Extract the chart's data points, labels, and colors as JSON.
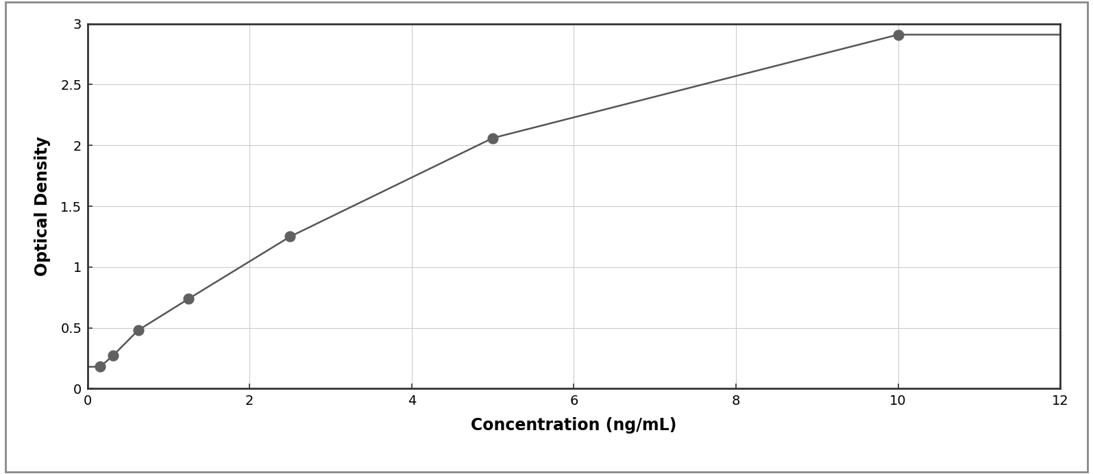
{
  "x_data": [
    0.156,
    0.313,
    0.625,
    1.25,
    2.5,
    5.0,
    10.0
  ],
  "y_data": [
    0.18,
    0.27,
    0.48,
    0.74,
    1.25,
    2.06,
    2.91
  ],
  "xlabel": "Concentration (ng/mL)",
  "ylabel": "Optical Density",
  "xlim": [
    0,
    12
  ],
  "ylim": [
    0,
    3
  ],
  "xticks": [
    0,
    2,
    4,
    6,
    8,
    10,
    12
  ],
  "yticks": [
    0,
    0.5,
    1.0,
    1.5,
    2.0,
    2.5,
    3.0
  ],
  "marker_color": "#606060",
  "line_color": "#555555",
  "marker_size": 9,
  "line_width": 1.8,
  "background_color": "#ffffff",
  "plot_bg_color": "#ffffff",
  "grid_color": "#cccccc",
  "border_color": "#333333",
  "outer_border_color": "#888888",
  "xlabel_fontsize": 17,
  "ylabel_fontsize": 17,
  "tick_fontsize": 14,
  "xlabel_fontweight": "bold",
  "ylabel_fontweight": "bold"
}
